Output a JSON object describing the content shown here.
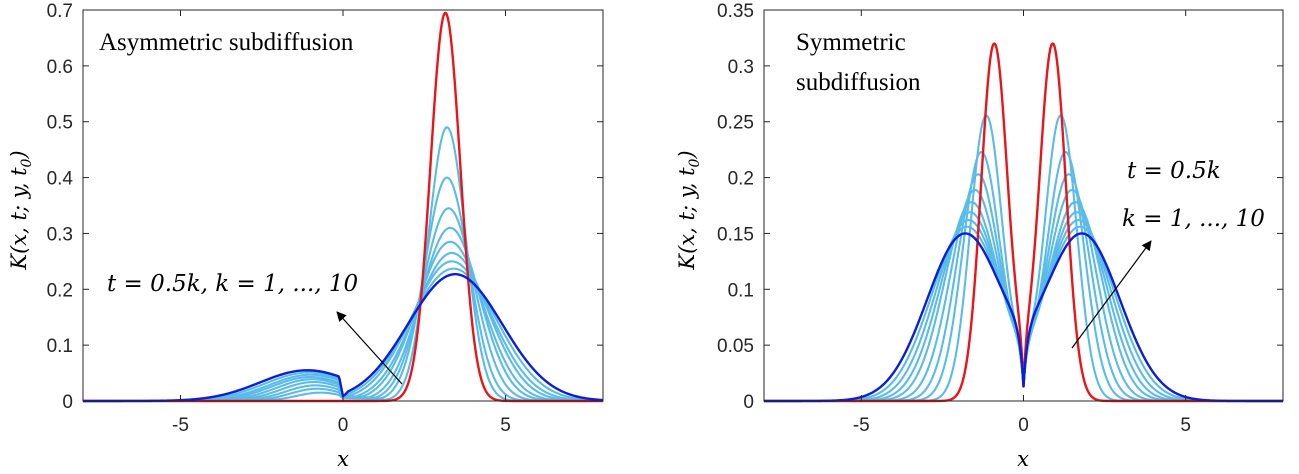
{
  "chart_data": [
    {
      "type": "line",
      "title": "",
      "xlabel": "x",
      "ylabel": "K(x, t; y, t0)",
      "xlim": [
        -8,
        8
      ],
      "ylim": [
        0,
        0.7
      ],
      "xticks": [
        -5,
        0,
        5
      ],
      "yticks": [
        0,
        0.1,
        0.2,
        0.3,
        0.4,
        0.5,
        0.6,
        0.7
      ],
      "ytick_labels": [
        "0",
        "0.1",
        "0.2",
        "0.3",
        "0.4",
        "0.5",
        "0.6",
        "0.7"
      ],
      "xtick_labels": [
        "-5",
        "0",
        "5"
      ],
      "grid": false,
      "annotations": [
        "Asymmetric subdiffusion",
        "t = 0.5k, k = 1, ..., 10"
      ],
      "series_colors": {
        "first": "#e8161b",
        "middle": "#5bbbe8",
        "last": "#0a1fd6"
      },
      "series": [
        {
          "t": 0.5,
          "peak": [
            3.15,
            0.695
          ],
          "neg_peak": [
            -0.5,
            0.0
          ],
          "at_zero": 0.0
        },
        {
          "t": 1.0,
          "peak": [
            3.2,
            0.49
          ],
          "neg_peak": [
            -0.7,
            0.015
          ],
          "at_zero": 0.005
        },
        {
          "t": 1.5,
          "peak": [
            3.2,
            0.4
          ],
          "neg_peak": [
            -0.8,
            0.022
          ],
          "at_zero": 0.006
        },
        {
          "t": 2.0,
          "peak": [
            3.25,
            0.345
          ],
          "neg_peak": [
            -0.85,
            0.028
          ],
          "at_zero": 0.007
        },
        {
          "t": 2.5,
          "peak": [
            3.3,
            0.31
          ],
          "neg_peak": [
            -0.9,
            0.034
          ],
          "at_zero": 0.007
        },
        {
          "t": 3.0,
          "peak": [
            3.3,
            0.285
          ],
          "neg_peak": [
            -0.95,
            0.039
          ],
          "at_zero": 0.008
        },
        {
          "t": 3.5,
          "peak": [
            3.35,
            0.265
          ],
          "neg_peak": [
            -1.0,
            0.043
          ],
          "at_zero": 0.008
        },
        {
          "t": 4.0,
          "peak": [
            3.35,
            0.25
          ],
          "neg_peak": [
            -1.0,
            0.047
          ],
          "at_zero": 0.008
        },
        {
          "t": 4.5,
          "peak": [
            3.4,
            0.237
          ],
          "neg_peak": [
            -1.05,
            0.051
          ],
          "at_zero": 0.009
        },
        {
          "t": 5.0,
          "peak": [
            3.45,
            0.227
          ],
          "neg_peak": [
            -1.1,
            0.055
          ],
          "at_zero": 0.009
        }
      ]
    },
    {
      "type": "line",
      "title": "",
      "xlabel": "x",
      "ylabel": "K(x, t; y, t0)",
      "xlim": [
        -8,
        8
      ],
      "ylim": [
        0,
        0.35
      ],
      "xticks": [
        -5,
        0,
        5
      ],
      "yticks": [
        0,
        0.05,
        0.1,
        0.15,
        0.2,
        0.25,
        0.3,
        0.35
      ],
      "ytick_labels": [
        "0",
        "0.05",
        "0.1",
        "0.15",
        "0.2",
        "0.25",
        "0.3",
        "0.35"
      ],
      "xtick_labels": [
        "-5",
        "0",
        "5"
      ],
      "grid": false,
      "annotations": [
        "Symmetric",
        "subdiffusion",
        "t = 0.5k",
        "k = 1, ..., 10"
      ],
      "series_colors": {
        "first": "#e8161b",
        "middle": "#5bbbe8",
        "last": "#0a1fd6"
      },
      "series": [
        {
          "t": 0.5,
          "peak_x": 0.9,
          "peak_y": 0.322,
          "at_zero": 0.013
        },
        {
          "t": 1.0,
          "peak_x": 1.15,
          "peak_y": 0.256,
          "at_zero": 0.013
        },
        {
          "t": 1.5,
          "peak_x": 1.3,
          "peak_y": 0.223,
          "at_zero": 0.013
        },
        {
          "t": 2.0,
          "peak_x": 1.4,
          "peak_y": 0.203,
          "at_zero": 0.013
        },
        {
          "t": 2.5,
          "peak_x": 1.5,
          "peak_y": 0.189,
          "at_zero": 0.013
        },
        {
          "t": 3.0,
          "peak_x": 1.6,
          "peak_y": 0.178,
          "at_zero": 0.013
        },
        {
          "t": 3.5,
          "peak_x": 1.65,
          "peak_y": 0.169,
          "at_zero": 0.013
        },
        {
          "t": 4.0,
          "peak_x": 1.7,
          "peak_y": 0.162,
          "at_zero": 0.013
        },
        {
          "t": 4.5,
          "peak_x": 1.75,
          "peak_y": 0.156,
          "at_zero": 0.013
        },
        {
          "t": 5.0,
          "peak_x": 1.8,
          "peak_y": 0.15,
          "at_zero": 0.013
        }
      ]
    }
  ],
  "panels": {
    "left": {
      "ylabel_main": "K(x, t; y, t",
      "ylabel_sub": "0",
      "ylabel_close": ")",
      "xlabel": "x",
      "note_1": "Asymmetric subdiffusion",
      "note_2": "t = 0.5k, k = 1, ..., 10"
    },
    "right": {
      "ylabel_main": "K(x, t; y, t",
      "ylabel_sub": "0",
      "ylabel_close": ")",
      "xlabel": "x",
      "note_1": "Symmetric",
      "note_2": "subdiffusion",
      "note_3": "t = 0.5k",
      "note_4": "k = 1, ..., 10"
    }
  }
}
